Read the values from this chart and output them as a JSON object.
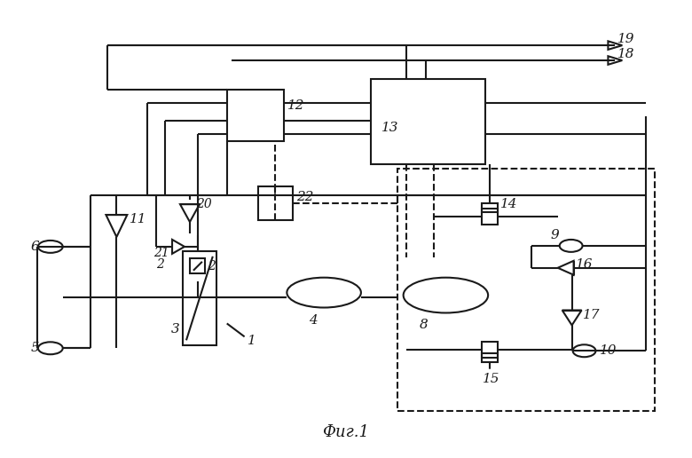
{
  "bg": "#ffffff",
  "lc": "#1a1a1a",
  "lw": 1.5,
  "caption": "Фиг.1"
}
